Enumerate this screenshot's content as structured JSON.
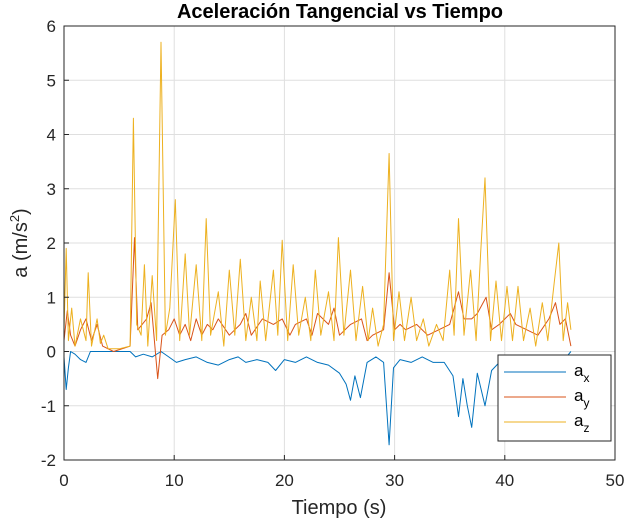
{
  "chart_data": {
    "type": "line",
    "title": "Aceleración Tangencial vs Tiempo",
    "xlabel": "Tiempo (s)",
    "ylabel": "a (m/s",
    "ylabel_sup": "2",
    "ylabel_close": ")",
    "xlim": [
      0,
      50
    ],
    "ylim": [
      -2,
      6
    ],
    "xticks": [
      0,
      10,
      20,
      30,
      40,
      50
    ],
    "yticks": [
      -2,
      -1,
      0,
      1,
      2,
      3,
      4,
      5,
      6
    ],
    "grid": true,
    "legend_position": "bottom-right",
    "series": [
      {
        "name": "a",
        "sub": "x",
        "color": "#0072BD",
        "points": [
          [
            0,
            -0.1
          ],
          [
            0.2,
            -0.7
          ],
          [
            0.4,
            -0.3
          ],
          [
            0.6,
            0
          ],
          [
            1.0,
            -0.05
          ],
          [
            1.5,
            -0.15
          ],
          [
            2.0,
            -0.2
          ],
          [
            2.4,
            0
          ],
          [
            3.0,
            0
          ],
          [
            4.0,
            0
          ],
          [
            5.0,
            0
          ],
          [
            6.0,
            0
          ],
          [
            6.5,
            -0.1
          ],
          [
            7.2,
            -0.05
          ],
          [
            8.0,
            -0.1
          ],
          [
            8.8,
            0
          ],
          [
            9.5,
            -0.1
          ],
          [
            10.2,
            -0.2
          ],
          [
            11.0,
            -0.15
          ],
          [
            12.0,
            -0.1
          ],
          [
            13.0,
            -0.2
          ],
          [
            14.0,
            -0.25
          ],
          [
            15.0,
            -0.15
          ],
          [
            15.8,
            -0.1
          ],
          [
            16.5,
            -0.2
          ],
          [
            17.5,
            -0.15
          ],
          [
            18.5,
            -0.2
          ],
          [
            19.2,
            -0.35
          ],
          [
            20.0,
            -0.15
          ],
          [
            21.0,
            -0.2
          ],
          [
            22.0,
            -0.1
          ],
          [
            23.0,
            -0.2
          ],
          [
            24.0,
            -0.25
          ],
          [
            25.0,
            -0.4
          ],
          [
            25.6,
            -0.6
          ],
          [
            26.0,
            -0.9
          ],
          [
            26.4,
            -0.45
          ],
          [
            26.9,
            -0.85
          ],
          [
            27.5,
            -0.2
          ],
          [
            28.3,
            -0.1
          ],
          [
            29.0,
            -0.2
          ],
          [
            29.5,
            -1.72
          ],
          [
            29.9,
            -0.3
          ],
          [
            30.5,
            -0.15
          ],
          [
            31.5,
            -0.2
          ],
          [
            32.5,
            -0.1
          ],
          [
            33.5,
            -0.2
          ],
          [
            34.5,
            -0.2
          ],
          [
            35.3,
            -0.45
          ],
          [
            35.8,
            -1.2
          ],
          [
            36.2,
            -0.5
          ],
          [
            36.6,
            -1.0
          ],
          [
            37.0,
            -1.4
          ],
          [
            37.5,
            -0.4
          ],
          [
            38.2,
            -1.0
          ],
          [
            38.8,
            -0.35
          ],
          [
            39.5,
            -0.2
          ],
          [
            40.2,
            -0.3
          ],
          [
            41.0,
            -0.15
          ],
          [
            42.0,
            -0.2
          ],
          [
            43.0,
            -0.15
          ],
          [
            44.0,
            -0.25
          ],
          [
            44.8,
            -0.35
          ],
          [
            45.4,
            -0.15
          ],
          [
            46.0,
            0
          ]
        ]
      },
      {
        "name": "a",
        "sub": "y",
        "color": "#D95319",
        "points": [
          [
            0,
            0.2
          ],
          [
            0.3,
            0.75
          ],
          [
            0.6,
            0.3
          ],
          [
            1.0,
            0.1
          ],
          [
            1.5,
            0.4
          ],
          [
            2.0,
            0.6
          ],
          [
            2.5,
            0.2
          ],
          [
            3.0,
            0.5
          ],
          [
            3.5,
            0.1
          ],
          [
            4.5,
            0
          ],
          [
            6.0,
            0.1
          ],
          [
            6.4,
            2.1
          ],
          [
            6.7,
            0.4
          ],
          [
            7.5,
            0.6
          ],
          [
            7.9,
            0.9
          ],
          [
            8.5,
            -0.5
          ],
          [
            8.9,
            0.3
          ],
          [
            9.5,
            0.4
          ],
          [
            10.0,
            0.6
          ],
          [
            10.5,
            0.3
          ],
          [
            11.0,
            0.5
          ],
          [
            11.5,
            0.2
          ],
          [
            12.0,
            0.6
          ],
          [
            12.5,
            0.3
          ],
          [
            13.0,
            0.5
          ],
          [
            13.5,
            0.4
          ],
          [
            14.0,
            0.6
          ],
          [
            15.0,
            0.3
          ],
          [
            16.0,
            0.5
          ],
          [
            16.5,
            0.7
          ],
          [
            17.0,
            0.3
          ],
          [
            18.0,
            0.6
          ],
          [
            19.0,
            0.5
          ],
          [
            19.8,
            0.6
          ],
          [
            20.5,
            0.3
          ],
          [
            21.0,
            0.5
          ],
          [
            22.0,
            0.6
          ],
          [
            22.5,
            0.3
          ],
          [
            23.0,
            0.7
          ],
          [
            24.0,
            0.5
          ],
          [
            24.5,
            0.8
          ],
          [
            25.0,
            0.3
          ],
          [
            26.0,
            0.5
          ],
          [
            27.0,
            0.6
          ],
          [
            27.5,
            0.2
          ],
          [
            28.0,
            0.3
          ],
          [
            29.0,
            0.4
          ],
          [
            29.5,
            1.45
          ],
          [
            30.0,
            0.4
          ],
          [
            30.5,
            0.5
          ],
          [
            31.0,
            0.4
          ],
          [
            32.0,
            0.5
          ],
          [
            33.0,
            0.3
          ],
          [
            34.0,
            0.4
          ],
          [
            35.0,
            0.5
          ],
          [
            35.8,
            1.1
          ],
          [
            36.3,
            0.6
          ],
          [
            37.0,
            0.6
          ],
          [
            37.5,
            0.7
          ],
          [
            38.3,
            1.0
          ],
          [
            38.8,
            0.4
          ],
          [
            39.5,
            0.5
          ],
          [
            40.5,
            0.7
          ],
          [
            41.0,
            0.5
          ],
          [
            42.0,
            0.4
          ],
          [
            43.0,
            0.3
          ],
          [
            44.0,
            0.6
          ],
          [
            44.6,
            0.9
          ],
          [
            45.0,
            0.5
          ],
          [
            45.5,
            0.6
          ],
          [
            46.0,
            0.1
          ]
        ]
      },
      {
        "name": "a",
        "sub": "z",
        "color": "#EDB120",
        "points": [
          [
            0,
            0.4
          ],
          [
            0.2,
            1.9
          ],
          [
            0.4,
            0.2
          ],
          [
            0.7,
            0.8
          ],
          [
            1.0,
            0.1
          ],
          [
            1.5,
            0.6
          ],
          [
            2.0,
            0.2
          ],
          [
            2.2,
            1.45
          ],
          [
            2.5,
            0.1
          ],
          [
            3.0,
            0.6
          ],
          [
            3.3,
            0.15
          ],
          [
            3.6,
            0.3
          ],
          [
            4.0,
            0.05
          ],
          [
            5.0,
            0.05
          ],
          [
            6.0,
            0.1
          ],
          [
            6.3,
            4.3
          ],
          [
            6.6,
            0.5
          ],
          [
            7.0,
            0.3
          ],
          [
            7.3,
            1.6
          ],
          [
            7.6,
            0.1
          ],
          [
            8.0,
            1.4
          ],
          [
            8.4,
            0.2
          ],
          [
            8.8,
            5.7
          ],
          [
            9.2,
            0.3
          ],
          [
            9.6,
            0.8
          ],
          [
            10.1,
            2.8
          ],
          [
            10.5,
            0.2
          ],
          [
            11.0,
            1.8
          ],
          [
            11.4,
            0.3
          ],
          [
            12.0,
            1.6
          ],
          [
            12.5,
            0.2
          ],
          [
            12.9,
            2.45
          ],
          [
            13.3,
            0.3
          ],
          [
            14.0,
            1.1
          ],
          [
            14.5,
            0.1
          ],
          [
            15.0,
            1.5
          ],
          [
            15.5,
            0.3
          ],
          [
            16.0,
            1.7
          ],
          [
            16.5,
            0.2
          ],
          [
            17.0,
            1.0
          ],
          [
            17.5,
            0.2
          ],
          [
            17.8,
            1.3
          ],
          [
            18.3,
            0.2
          ],
          [
            19.0,
            1.5
          ],
          [
            19.4,
            0.3
          ],
          [
            19.8,
            2.05
          ],
          [
            20.3,
            0.2
          ],
          [
            20.8,
            1.6
          ],
          [
            21.3,
            0.3
          ],
          [
            21.9,
            1.0
          ],
          [
            22.4,
            0.2
          ],
          [
            22.8,
            1.5
          ],
          [
            23.3,
            0.3
          ],
          [
            24.0,
            1.1
          ],
          [
            24.5,
            0.2
          ],
          [
            24.9,
            2.1
          ],
          [
            25.4,
            0.3
          ],
          [
            26.0,
            1.5
          ],
          [
            26.5,
            0.2
          ],
          [
            27.1,
            1.2
          ],
          [
            27.6,
            0.2
          ],
          [
            28.0,
            0.8
          ],
          [
            28.5,
            0.1
          ],
          [
            29.0,
            0.5
          ],
          [
            29.5,
            3.65
          ],
          [
            29.9,
            0.2
          ],
          [
            30.4,
            1.1
          ],
          [
            30.9,
            0.2
          ],
          [
            31.5,
            1.0
          ],
          [
            32.0,
            0.2
          ],
          [
            32.6,
            0.6
          ],
          [
            33.1,
            0.1
          ],
          [
            33.8,
            0.5
          ],
          [
            34.4,
            0.2
          ],
          [
            35.0,
            1.5
          ],
          [
            35.4,
            0.3
          ],
          [
            35.8,
            2.45
          ],
          [
            36.3,
            0.3
          ],
          [
            36.9,
            1.5
          ],
          [
            37.4,
            0.2
          ],
          [
            37.8,
            1.8
          ],
          [
            38.2,
            3.2
          ],
          [
            38.7,
            0.2
          ],
          [
            39.2,
            1.3
          ],
          [
            39.7,
            0.2
          ],
          [
            40.2,
            1.2
          ],
          [
            40.7,
            0.2
          ],
          [
            41.2,
            1.2
          ],
          [
            41.7,
            0.2
          ],
          [
            42.3,
            0.8
          ],
          [
            42.8,
            0.1
          ],
          [
            43.4,
            0.9
          ],
          [
            43.9,
            0.2
          ],
          [
            44.5,
            1.3
          ],
          [
            44.9,
            2.0
          ],
          [
            45.3,
            0.2
          ],
          [
            45.7,
            0.9
          ],
          [
            46.0,
            0.4
          ]
        ]
      }
    ]
  }
}
